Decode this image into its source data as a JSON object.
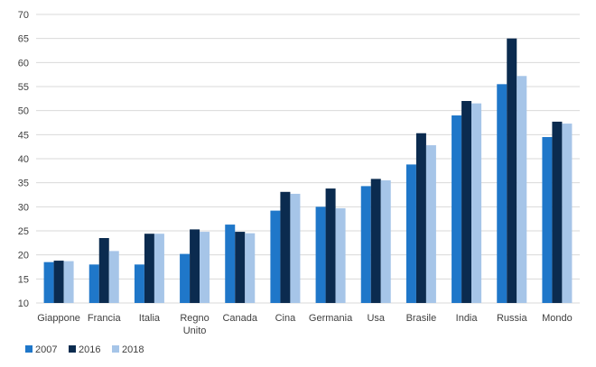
{
  "chart_data": {
    "type": "bar",
    "categories": [
      "Giappone",
      "Francia",
      "Italia",
      "Regno Unito",
      "Canada",
      "Cina",
      "Germania",
      "Usa",
      "Brasile",
      "India",
      "Russia",
      "Mondo"
    ],
    "series": [
      {
        "name": "2007",
        "color": "#1f77c9",
        "values": [
          18.5,
          18.0,
          18.0,
          20.2,
          26.3,
          29.2,
          30.0,
          34.3,
          38.8,
          49.0,
          55.5,
          44.5
        ]
      },
      {
        "name": "2016",
        "color": "#0b2b4f",
        "values": [
          18.8,
          23.5,
          24.4,
          25.3,
          24.8,
          33.1,
          33.8,
          35.8,
          45.3,
          52.0,
          65.0,
          47.7
        ]
      },
      {
        "name": "2018",
        "color": "#a6c5e8",
        "values": [
          18.7,
          20.8,
          24.4,
          24.8,
          24.5,
          32.7,
          29.7,
          35.5,
          42.8,
          51.5,
          57.2,
          47.3
        ]
      }
    ],
    "yticks": [
      "10",
      "15",
      "20",
      "25",
      "30",
      "35",
      "40",
      "45",
      "50",
      "55",
      "60",
      "65",
      "70"
    ],
    "ylim": [
      10,
      70
    ],
    "grid": true,
    "legend": "bottom-left"
  }
}
